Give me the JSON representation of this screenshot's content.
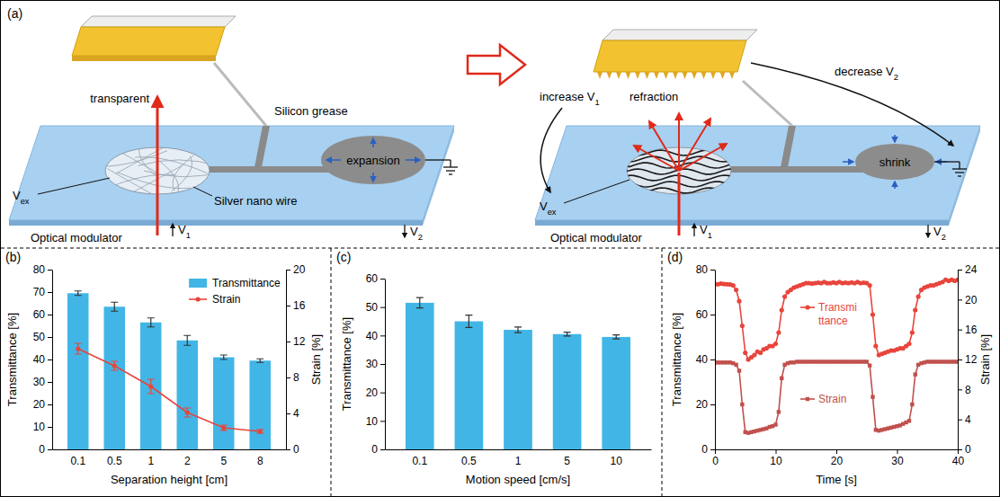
{
  "diagram": {
    "label": "(a)",
    "left": {
      "transparent": "transparent",
      "silicon_grease": "Silicon grease",
      "expansion": "expansion",
      "vex": {
        "text": "V",
        "sub": "ex"
      },
      "silver_nano_wire": "Silver nano wire",
      "optical_modulator": "Optical modulator",
      "v1": {
        "text": "V",
        "sub": "1"
      },
      "v2": {
        "text": "V",
        "sub": "2"
      }
    },
    "right": {
      "increase_v1": {
        "text": "increase V",
        "sub": "1"
      },
      "decrease_v2": {
        "text": "decrease V",
        "sub": "2"
      },
      "refraction": "refraction",
      "shrink": "shrink",
      "vex": {
        "text": "V",
        "sub": "ex"
      },
      "optical_modulator": "Optical modulator",
      "v1": {
        "text": "V",
        "sub": "1"
      },
      "v2": {
        "text": "V",
        "sub": "2"
      }
    }
  },
  "chart_data": [
    {
      "type": "bar",
      "title": "(b)",
      "categories": [
        "0.1",
        "0.5",
        "1",
        "2",
        "5",
        "8"
      ],
      "x_label": "Separation height [cm]",
      "y_label": "Transmittance [%]",
      "y2_label": "Strain [%]",
      "ylim": [
        0,
        80
      ],
      "yticks": [
        0,
        10,
        20,
        30,
        40,
        50,
        60,
        70,
        80
      ],
      "y2lim": [
        0,
        20
      ],
      "y2ticks": [
        0,
        4,
        8,
        12,
        16,
        20
      ],
      "legend": "top-right",
      "series": [
        {
          "name": "Transmittance",
          "type": "bar",
          "color": "#41b6e6",
          "values": [
            69.5,
            63.5,
            56.5,
            48.5,
            41,
            39.5
          ],
          "errors": [
            1,
            2,
            2,
            2.2,
            1,
            0.8
          ]
        },
        {
          "name": "Strain",
          "type": "line",
          "axis": "y2",
          "color": "#e8453c",
          "marker": "circle",
          "values": [
            11.2,
            9.3,
            7,
            4.1,
            2.4,
            2
          ],
          "errors": [
            0.6,
            0.5,
            0.8,
            0.5,
            0.3,
            0.2
          ]
        }
      ]
    },
    {
      "type": "bar",
      "title": "(c)",
      "categories": [
        "0.1",
        "0.5",
        "1",
        "5",
        "10"
      ],
      "x_label": "Motion speed [cm/s]",
      "y_label": "Transmittance [%]",
      "ylim": [
        0,
        60
      ],
      "yticks": [
        0,
        10,
        20,
        30,
        40,
        50,
        60
      ],
      "color": "#41b6e6",
      "values": [
        51.5,
        45,
        42,
        40.5,
        39.5
      ],
      "errors": [
        1.8,
        2.2,
        1,
        0.7,
        0.7
      ]
    },
    {
      "type": "line",
      "title": "(d)",
      "x_label": "Time [s]",
      "y_label": "Transmittance [%]",
      "y2_label": "Strain [%]",
      "xlim": [
        0,
        40
      ],
      "xticks": [
        0,
        10,
        20,
        30,
        40
      ],
      "ylim": [
        0,
        80
      ],
      "yticks": [
        0,
        20,
        40,
        60,
        80
      ],
      "y2lim": [
        0,
        24
      ],
      "y2ticks": [
        0,
        4,
        8,
        12,
        16,
        20,
        24
      ],
      "x": [
        0,
        0.5,
        1,
        1.5,
        2,
        2.5,
        3,
        3.5,
        4,
        4.5,
        5,
        5.5,
        6,
        6.5,
        7,
        7.5,
        8,
        8.5,
        9,
        9.5,
        10,
        10.5,
        11,
        11.5,
        12,
        12.5,
        13,
        13.5,
        14,
        14.5,
        15,
        15.5,
        16,
        16.5,
        17,
        17.5,
        18,
        18.5,
        19,
        19.5,
        20,
        20.5,
        21,
        21.5,
        22,
        22.5,
        23,
        23.5,
        24,
        24.5,
        25,
        25.5,
        26,
        26.5,
        27,
        27.5,
        28,
        28.5,
        29,
        29.5,
        30,
        30.5,
        31,
        31.5,
        32,
        32.5,
        33,
        33.5,
        34,
        34.5,
        35,
        35.5,
        36,
        36.5,
        37,
        37.5,
        38,
        38.5,
        39,
        39.5,
        40
      ],
      "series": [
        {
          "name": "Transmittance",
          "color": "#e8453c",
          "marker": "circle",
          "values": [
            73.5,
            73.5,
            73.8,
            73.6,
            73.5,
            73.4,
            73,
            71,
            66,
            55,
            43,
            40,
            41,
            42,
            43.5,
            43,
            44.5,
            45,
            46,
            46,
            47,
            52,
            62,
            68,
            70,
            71,
            72,
            72.5,
            73,
            73.5,
            74,
            74,
            73.8,
            74,
            74.2,
            74,
            74.5,
            74,
            74,
            74.3,
            74,
            74.5,
            74,
            74.2,
            74,
            74.3,
            74,
            74.5,
            74,
            74.2,
            74,
            73,
            60,
            46,
            42,
            42.5,
            43,
            43.5,
            44,
            44,
            44.5,
            45,
            45,
            46,
            47,
            52,
            62,
            68,
            71,
            72,
            72.5,
            73,
            73,
            73.5,
            74,
            74.5,
            75.5,
            75,
            75.5,
            75,
            75.5
          ]
        },
        {
          "name": "Strain",
          "axis": "y2",
          "color": "#c0504d",
          "marker": "square",
          "values": [
            11.6,
            11.6,
            11.6,
            11.6,
            11.6,
            11.6,
            11.5,
            11.3,
            10.5,
            6,
            2.3,
            2.2,
            2.3,
            2.4,
            2.5,
            2.6,
            2.7,
            2.8,
            3,
            3.1,
            3.3,
            5,
            9.5,
            11.3,
            11.5,
            11.6,
            11.6,
            11.7,
            11.7,
            11.7,
            11.7,
            11.7,
            11.7,
            11.7,
            11.7,
            11.7,
            11.7,
            11.7,
            11.7,
            11.7,
            11.7,
            11.7,
            11.7,
            11.7,
            11.7,
            11.7,
            11.7,
            11.7,
            11.7,
            11.7,
            11.7,
            11.2,
            7,
            2.6,
            2.5,
            2.6,
            2.7,
            2.8,
            2.9,
            3,
            3.1,
            3.2,
            3.4,
            3.6,
            3.8,
            6,
            10,
            11.3,
            11.5,
            11.6,
            11.7,
            11.7,
            11.7,
            11.7,
            11.7,
            11.7,
            11.7,
            11.7,
            11.7,
            11.7,
            11.7
          ]
        }
      ]
    }
  ]
}
